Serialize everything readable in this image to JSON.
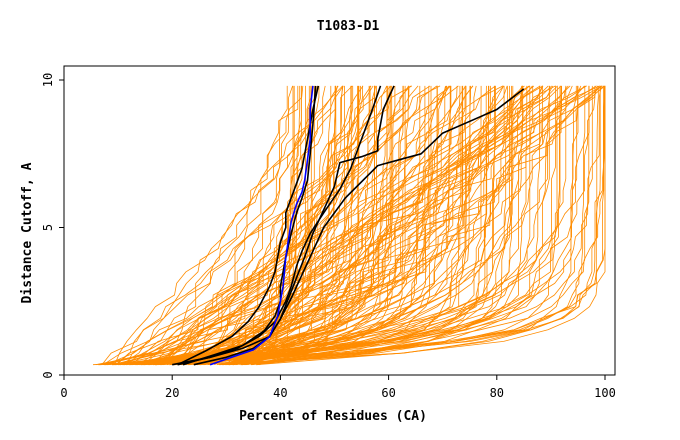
{
  "chart_data": {
    "type": "line",
    "title": "T1083-D1",
    "xlabel": "Percent of Residues (CA)",
    "ylabel": "Distance Cutoff, A",
    "xlim": [
      0,
      100
    ],
    "ylim": [
      0,
      10
    ],
    "xticks": [
      {
        "value": 0,
        "label": "0"
      },
      {
        "value": 20,
        "label": "20"
      },
      {
        "value": 40,
        "label": "40"
      },
      {
        "value": 60,
        "label": "60"
      },
      {
        "value": 80,
        "label": "80"
      },
      {
        "value": 100,
        "label": "100"
      }
    ],
    "yticks": [
      {
        "value": 0,
        "label": "0"
      },
      {
        "value": 5,
        "label": "5"
      },
      {
        "value": 10,
        "label": "10"
      }
    ],
    "colors": {
      "models": "#ff8c00",
      "highlight": "#000000",
      "best": "#0000ff",
      "axes": "#000000"
    },
    "highlight_series": [
      {
        "name": "black-1",
        "x": [
          21,
          26,
          31,
          34,
          36,
          38,
          39,
          39.5,
          40,
          41,
          41,
          42,
          43,
          44,
          45,
          46,
          47
        ],
        "y": [
          0.35,
          0.8,
          1.3,
          1.8,
          2.3,
          3.0,
          3.5,
          4.0,
          4.5,
          5.0,
          5.5,
          6.0,
          6.5,
          7.0,
          8.0,
          9.0,
          9.8
        ]
      },
      {
        "name": "black-2",
        "x": [
          22,
          28,
          33,
          37,
          39,
          40,
          40,
          40.5,
          41,
          42,
          43,
          44,
          45,
          45.5,
          46,
          46.5
        ],
        "y": [
          0.35,
          0.7,
          1.0,
          1.5,
          2.0,
          2.5,
          3.0,
          3.5,
          4.0,
          4.8,
          5.5,
          6.0,
          6.6,
          7.5,
          8.5,
          9.8
        ]
      },
      {
        "name": "black-3",
        "x": [
          21,
          27,
          32,
          36,
          39,
          41,
          42,
          43,
          44,
          45.5,
          48,
          51,
          53,
          55,
          57,
          58.5
        ],
        "y": [
          0.35,
          0.6,
          0.9,
          1.3,
          1.8,
          2.5,
          3.0,
          3.7,
          4.2,
          4.8,
          5.5,
          6.3,
          7.0,
          8.0,
          9.0,
          9.8
        ]
      },
      {
        "name": "black-4",
        "x": [
          20,
          27,
          33,
          38,
          40,
          41.5,
          43,
          44.5,
          46,
          48,
          50,
          51,
          55,
          58,
          58,
          59,
          61
        ],
        "y": [
          0.35,
          0.6,
          0.9,
          1.3,
          1.9,
          2.6,
          3.3,
          4.0,
          4.8,
          5.6,
          6.4,
          7.2,
          7.4,
          7.6,
          8.0,
          9.0,
          9.8
        ]
      },
      {
        "name": "black-5",
        "x": [
          24,
          30,
          35,
          38,
          40,
          42,
          44,
          46,
          48,
          52,
          58,
          62,
          66,
          70,
          75,
          80,
          85
        ],
        "y": [
          0.35,
          0.6,
          0.9,
          1.3,
          1.9,
          2.6,
          3.4,
          4.2,
          5.0,
          6.0,
          7.1,
          7.3,
          7.5,
          8.2,
          8.6,
          9.0,
          9.7
        ]
      }
    ],
    "best_series": {
      "name": "blue",
      "x": [
        27,
        31,
        35,
        38,
        39.5,
        40.5,
        41,
        41.5,
        42,
        43,
        44,
        44.5,
        45,
        45.5,
        45.5,
        46
      ],
      "y": [
        0.35,
        0.6,
        0.85,
        1.3,
        2.0,
        3.0,
        4.0,
        4.6,
        5.2,
        5.8,
        6.2,
        6.6,
        7.3,
        8.0,
        9.0,
        9.8
      ]
    },
    "model_family": {
      "count": 180,
      "y_start": 0.35,
      "y_end": 9.8,
      "x_start_range": [
        6,
        35
      ],
      "x_end_range": [
        40,
        100
      ]
    }
  }
}
